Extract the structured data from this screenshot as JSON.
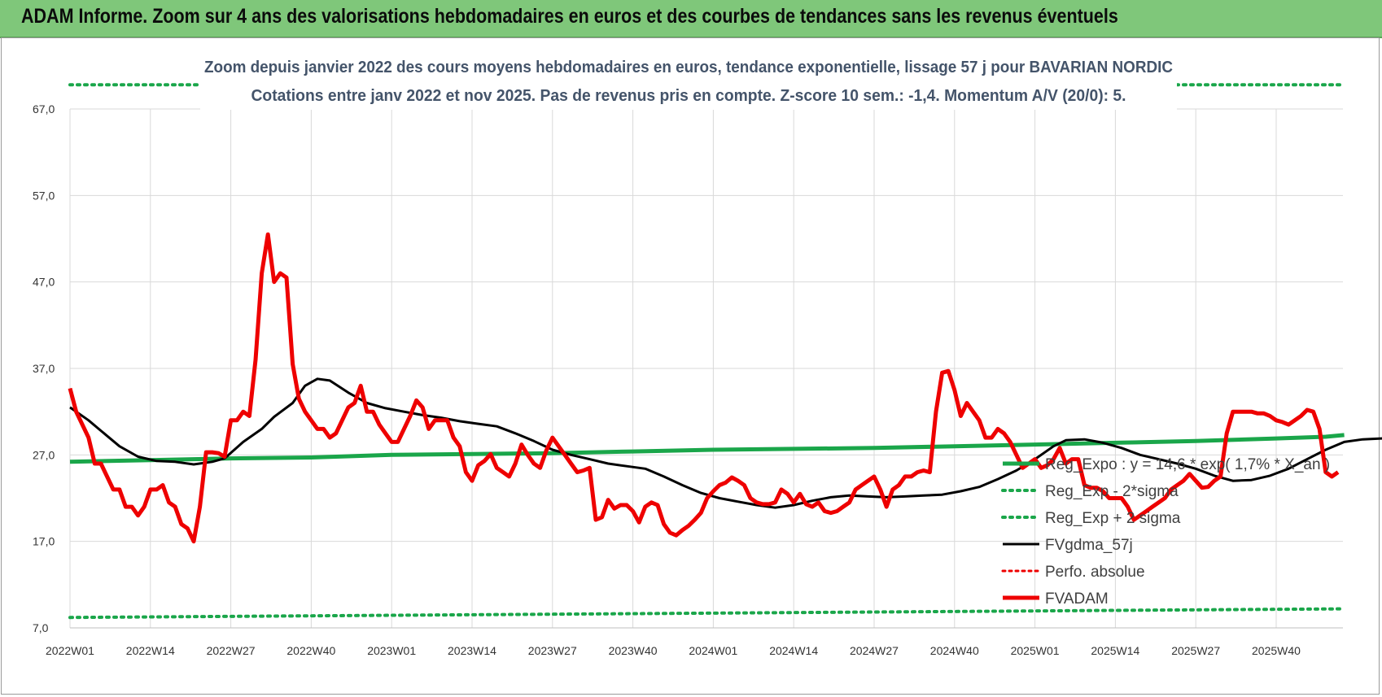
{
  "banner": {
    "title": "ADAM Informe. Zoom sur 4 ans des valorisations hebdomadaires en euros et des courbes de tendances sans les revenus éventuels"
  },
  "colors": {
    "banner_bg": "#7fc77a",
    "trend": "#1aa64a",
    "band": "#1aa64a",
    "average": "#000000",
    "price": "#ee0000",
    "perfo": "#ee0000",
    "grid": "#d9d9d9"
  },
  "chart_data": {
    "type": "line",
    "title": "Zoom depuis janvier 2022 des cours moyens hebdomadaires en euros, tendance exponentielle, lissage 57 j pour BAVARIAN NORDIC",
    "subtitle": "Cotations entre janv 2022 et nov 2025. Pas de revenus pris en compte. Z-score 10 sem.: -1,4. Momentum A/V (20/0): 5.",
    "xlabel": "",
    "ylabel": "",
    "x_ticks": [
      "2022W01",
      "2022W14",
      "2022W27",
      "2022W40",
      "2023W01",
      "2023W14",
      "2023W27",
      "2023W40",
      "2024W01",
      "2024W14",
      "2024W27",
      "2024W40",
      "2025W01",
      "2025W14",
      "2025W27",
      "2025W40"
    ],
    "y_ticks": [
      "7,0",
      "17,0",
      "27,0",
      "37,0",
      "47,0",
      "57,0",
      "67,0"
    ],
    "ylim": [
      7,
      67
    ],
    "x_range_weeks": [
      0,
      206
    ],
    "grid": "both",
    "legend_position": "bottom-right",
    "series": [
      {
        "name": "Reg_Expo : y = 14,6 * exp( 1,7% * X_an )",
        "style": "solid-thick-green",
        "points": [
          [
            0,
            26.2
          ],
          [
            13,
            26.4
          ],
          [
            26,
            26.6
          ],
          [
            39,
            26.7
          ],
          [
            52,
            27.0
          ],
          [
            65,
            27.1
          ],
          [
            78,
            27.2
          ],
          [
            91,
            27.4
          ],
          [
            104,
            27.6
          ],
          [
            117,
            27.7
          ],
          [
            130,
            27.8
          ],
          [
            143,
            28.0
          ],
          [
            156,
            28.2
          ],
          [
            169,
            28.4
          ],
          [
            182,
            28.6
          ],
          [
            195,
            28.9
          ],
          [
            203,
            29.1
          ],
          [
            206,
            29.3
          ]
        ]
      },
      {
        "name": "Reg_Exp - 2*sigma",
        "style": "dotted-green",
        "points": [
          [
            0,
            8.2
          ],
          [
            206,
            9.2
          ]
        ]
      },
      {
        "name": "Reg_Exp + 2 sigma",
        "style": "dotted-green",
        "points": [
          [
            0,
            69.8
          ],
          [
            206,
            69.8
          ]
        ]
      },
      {
        "name": "FVgdma_57j",
        "style": "solid-black",
        "points": [
          [
            0,
            32.5
          ],
          [
            3,
            31
          ],
          [
            5,
            29.8
          ],
          [
            8,
            28
          ],
          [
            11,
            26.8
          ],
          [
            14,
            26.3
          ],
          [
            17,
            26.2
          ],
          [
            20,
            25.9
          ],
          [
            23,
            26.2
          ],
          [
            25,
            26.6
          ],
          [
            28,
            28.5
          ],
          [
            31,
            30
          ],
          [
            33,
            31.4
          ],
          [
            36,
            33
          ],
          [
            38,
            35
          ],
          [
            40,
            35.8
          ],
          [
            42,
            35.6
          ],
          [
            45,
            34.2
          ],
          [
            48,
            33
          ],
          [
            51,
            32.4
          ],
          [
            54,
            32
          ],
          [
            57,
            31.6
          ],
          [
            60,
            31.3
          ],
          [
            63,
            30.9
          ],
          [
            66,
            30.6
          ],
          [
            69,
            30.3
          ],
          [
            72,
            29.5
          ],
          [
            75,
            28.6
          ],
          [
            78,
            27.6
          ],
          [
            81,
            27
          ],
          [
            84,
            26.5
          ],
          [
            87,
            26
          ],
          [
            90,
            25.7
          ],
          [
            93,
            25.4
          ],
          [
            96,
            24.5
          ],
          [
            99,
            23.5
          ],
          [
            102,
            22.6
          ],
          [
            105,
            22
          ],
          [
            108,
            21.6
          ],
          [
            111,
            21.2
          ],
          [
            114,
            20.9
          ],
          [
            117,
            21.2
          ],
          [
            120,
            21.7
          ],
          [
            123,
            22.1
          ],
          [
            126,
            22.3
          ],
          [
            129,
            22.2
          ],
          [
            132,
            22.1
          ],
          [
            135,
            22.2
          ],
          [
            138,
            22.3
          ],
          [
            141,
            22.4
          ],
          [
            144,
            22.8
          ],
          [
            147,
            23.3
          ],
          [
            150,
            24.2
          ],
          [
            153,
            25.2
          ],
          [
            156,
            26.5
          ],
          [
            159,
            28
          ],
          [
            161,
            28.7
          ],
          [
            164,
            28.8
          ],
          [
            167,
            28.4
          ],
          [
            170,
            27.8
          ],
          [
            173,
            27
          ],
          [
            176,
            26.5
          ],
          [
            179,
            26
          ],
          [
            182,
            25.4
          ],
          [
            185,
            24.6
          ],
          [
            188,
            24.0
          ],
          [
            191,
            24.1
          ],
          [
            194,
            24.6
          ],
          [
            197,
            25.4
          ],
          [
            200,
            26.5
          ],
          [
            203,
            27.6
          ],
          [
            206,
            28.5
          ],
          [
            209,
            28.8
          ],
          [
            212,
            28.9
          ],
          [
            215,
            28.8
          ],
          [
            218,
            28.3
          ],
          [
            221,
            27.5
          ],
          [
            224,
            26.7
          ]
        ]
      },
      {
        "name": "Perfo. absolue",
        "style": "dotted-red",
        "points": []
      },
      {
        "name": "FVADAM",
        "style": "solid-thick-red",
        "points": [
          [
            0,
            34.7
          ],
          [
            1,
            32
          ],
          [
            3,
            29
          ],
          [
            4,
            26
          ],
          [
            5,
            26
          ],
          [
            7,
            23
          ],
          [
            8,
            23
          ],
          [
            9,
            21
          ],
          [
            10,
            21
          ],
          [
            11,
            20
          ],
          [
            12,
            21
          ],
          [
            13,
            23
          ],
          [
            14,
            23
          ],
          [
            15,
            23.5
          ],
          [
            16,
            21.5
          ],
          [
            17,
            21
          ],
          [
            18,
            19
          ],
          [
            19,
            18.5
          ],
          [
            20,
            17
          ],
          [
            21,
            21
          ],
          [
            22,
            27.3
          ],
          [
            23,
            27.3
          ],
          [
            24,
            27.2
          ],
          [
            25,
            26.8
          ],
          [
            26,
            31
          ],
          [
            27,
            31
          ],
          [
            28,
            32
          ],
          [
            29,
            31.5
          ],
          [
            30,
            38
          ],
          [
            31,
            48
          ],
          [
            32,
            52.5
          ],
          [
            33,
            47
          ],
          [
            34,
            48
          ],
          [
            35,
            47.5
          ],
          [
            36,
            37.5
          ],
          [
            37,
            33.5
          ],
          [
            38,
            32
          ],
          [
            39,
            31
          ],
          [
            40,
            30
          ],
          [
            41,
            30
          ],
          [
            42,
            29
          ],
          [
            43,
            29.5
          ],
          [
            44,
            31
          ],
          [
            45,
            32.5
          ],
          [
            46,
            33
          ],
          [
            47,
            35
          ],
          [
            48,
            32
          ],
          [
            49,
            32
          ],
          [
            50,
            30.5
          ],
          [
            51,
            29.5
          ],
          [
            52,
            28.5
          ],
          [
            53,
            28.5
          ],
          [
            54,
            30
          ],
          [
            55,
            31.5
          ],
          [
            56,
            33.3
          ],
          [
            57,
            32.5
          ],
          [
            58,
            30
          ],
          [
            59,
            31
          ],
          [
            60,
            31
          ],
          [
            61,
            31
          ],
          [
            62,
            29
          ],
          [
            63,
            28
          ],
          [
            64,
            25
          ],
          [
            65,
            24
          ],
          [
            66,
            25.8
          ],
          [
            67,
            26.3
          ],
          [
            68,
            27.1
          ],
          [
            69,
            25.5
          ],
          [
            70,
            25
          ],
          [
            71,
            24.5
          ],
          [
            72,
            26
          ],
          [
            73,
            28.2
          ],
          [
            74,
            27
          ],
          [
            75,
            26
          ],
          [
            76,
            25.5
          ],
          [
            77,
            27.5
          ],
          [
            78,
            29
          ],
          [
            79,
            28
          ],
          [
            80,
            27
          ],
          [
            81,
            26
          ],
          [
            82,
            25
          ],
          [
            83,
            25.2
          ],
          [
            84,
            25.5
          ],
          [
            85,
            19.5
          ],
          [
            86,
            19.8
          ],
          [
            87,
            21.8
          ],
          [
            88,
            20.8
          ],
          [
            89,
            21.2
          ],
          [
            90,
            21.2
          ],
          [
            91,
            20.5
          ],
          [
            92,
            19.2
          ],
          [
            93,
            21
          ],
          [
            94,
            21.5
          ],
          [
            95,
            21.2
          ],
          [
            96,
            19
          ],
          [
            97,
            18
          ],
          [
            98,
            17.7
          ],
          [
            99,
            18.3
          ],
          [
            100,
            18.8
          ],
          [
            101,
            19.5
          ],
          [
            102,
            20.3
          ],
          [
            103,
            22
          ],
          [
            104,
            22.8
          ],
          [
            105,
            23.5
          ],
          [
            106,
            23.8
          ],
          [
            107,
            24.4
          ],
          [
            108,
            24
          ],
          [
            109,
            23.5
          ],
          [
            110,
            22
          ],
          [
            111,
            21.5
          ],
          [
            112,
            21.3
          ],
          [
            113,
            21.3
          ],
          [
            114,
            21.5
          ],
          [
            115,
            23
          ],
          [
            116,
            22.5
          ],
          [
            117,
            21.5
          ],
          [
            118,
            22.5
          ],
          [
            119,
            21.3
          ],
          [
            120,
            21
          ],
          [
            121,
            21.5
          ],
          [
            122,
            20.5
          ],
          [
            123,
            20.3
          ],
          [
            124,
            20.5
          ],
          [
            125,
            21
          ],
          [
            126,
            21.5
          ],
          [
            127,
            23
          ],
          [
            128,
            23.5
          ],
          [
            129,
            24
          ],
          [
            130,
            24.5
          ],
          [
            131,
            23
          ],
          [
            132,
            21
          ],
          [
            133,
            23
          ],
          [
            134,
            23.5
          ],
          [
            135,
            24.5
          ],
          [
            136,
            24.5
          ],
          [
            137,
            25
          ],
          [
            138,
            25.2
          ],
          [
            139,
            25
          ],
          [
            140,
            32
          ],
          [
            141,
            36.5
          ],
          [
            142,
            36.7
          ],
          [
            143,
            34.5
          ],
          [
            144,
            31.5
          ],
          [
            145,
            33
          ],
          [
            146,
            32
          ],
          [
            147,
            31
          ],
          [
            148,
            29
          ],
          [
            149,
            29
          ],
          [
            150,
            30
          ],
          [
            151,
            29.5
          ],
          [
            152,
            28.5
          ],
          [
            153,
            27
          ],
          [
            154,
            25.5
          ],
          [
            155,
            26
          ],
          [
            156,
            26.5
          ],
          [
            157,
            25.5
          ],
          [
            158,
            25.8
          ],
          [
            159,
            26.5
          ],
          [
            160,
            27.8
          ],
          [
            161,
            26
          ],
          [
            162,
            26.5
          ],
          [
            163,
            26.5
          ],
          [
            164,
            23.5
          ],
          [
            165,
            23.2
          ],
          [
            166,
            23.2
          ],
          [
            167,
            22.8
          ],
          [
            168,
            22
          ],
          [
            169,
            22
          ],
          [
            170,
            22
          ],
          [
            171,
            21
          ],
          [
            172,
            19.5
          ],
          [
            173,
            20
          ],
          [
            174,
            20.5
          ],
          [
            175,
            21
          ],
          [
            176,
            21.5
          ],
          [
            177,
            22
          ],
          [
            178,
            23
          ],
          [
            179,
            23.5
          ],
          [
            180,
            24
          ],
          [
            181,
            24.8
          ],
          [
            182,
            24
          ],
          [
            183,
            23.2
          ],
          [
            184,
            23.3
          ],
          [
            185,
            24
          ],
          [
            186,
            24.5
          ],
          [
            187,
            29.5
          ],
          [
            188,
            32
          ],
          [
            189,
            32
          ],
          [
            190,
            32
          ],
          [
            191,
            32
          ],
          [
            192,
            31.8
          ],
          [
            193,
            31.8
          ],
          [
            194,
            31.5
          ],
          [
            195,
            31
          ],
          [
            196,
            30.8
          ],
          [
            197,
            30.5
          ],
          [
            198,
            31
          ],
          [
            199,
            31.5
          ],
          [
            200,
            32.2
          ],
          [
            201,
            32
          ],
          [
            202,
            30
          ],
          [
            203,
            25
          ],
          [
            204,
            24.5
          ],
          [
            205,
            25
          ]
        ]
      }
    ]
  }
}
